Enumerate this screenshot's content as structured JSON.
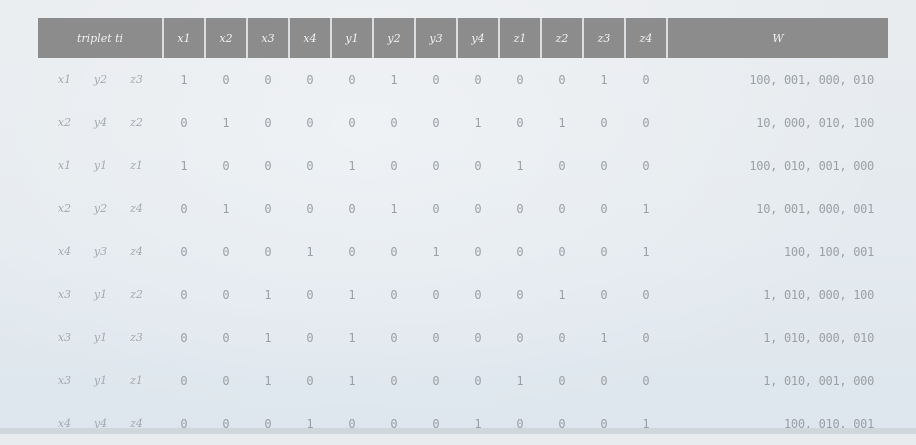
{
  "table": {
    "header": {
      "triplet": "triplet ti",
      "cols": [
        "x1",
        "x2",
        "x3",
        "x4",
        "y1",
        "y2",
        "y3",
        "y4",
        "z1",
        "z2",
        "z3",
        "z4"
      ],
      "w": "W"
    },
    "rows": [
      {
        "a": "x1",
        "b": "y2",
        "c": "z3",
        "bits": [
          "1",
          "0",
          "0",
          "0",
          "0",
          "1",
          "0",
          "0",
          "0",
          "0",
          "1",
          "0"
        ],
        "w": "100, 001, 000, 010"
      },
      {
        "a": "x2",
        "b": "y4",
        "c": "z2",
        "bits": [
          "0",
          "1",
          "0",
          "0",
          "0",
          "0",
          "0",
          "1",
          "0",
          "1",
          "0",
          "0"
        ],
        "w": "10, 000, 010, 100"
      },
      {
        "a": "x1",
        "b": "y1",
        "c": "z1",
        "bits": [
          "1",
          "0",
          "0",
          "0",
          "1",
          "0",
          "0",
          "0",
          "1",
          "0",
          "0",
          "0"
        ],
        "w": "100, 010, 001, 000"
      },
      {
        "a": "x2",
        "b": "y2",
        "c": "z4",
        "bits": [
          "0",
          "1",
          "0",
          "0",
          "0",
          "1",
          "0",
          "0",
          "0",
          "0",
          "0",
          "1"
        ],
        "w": "10, 001, 000, 001"
      },
      {
        "a": "x4",
        "b": "y3",
        "c": "z4",
        "bits": [
          "0",
          "0",
          "0",
          "1",
          "0",
          "0",
          "1",
          "0",
          "0",
          "0",
          "0",
          "1"
        ],
        "w": "100, 100, 001"
      },
      {
        "a": "x3",
        "b": "y1",
        "c": "z2",
        "bits": [
          "0",
          "0",
          "1",
          "0",
          "1",
          "0",
          "0",
          "0",
          "0",
          "1",
          "0",
          "0"
        ],
        "w": "1, 010, 000, 100"
      },
      {
        "a": "x3",
        "b": "y1",
        "c": "z3",
        "bits": [
          "0",
          "0",
          "1",
          "0",
          "1",
          "0",
          "0",
          "0",
          "0",
          "0",
          "1",
          "0"
        ],
        "w": "1, 010, 000, 010"
      },
      {
        "a": "x3",
        "b": "y1",
        "c": "z1",
        "bits": [
          "0",
          "0",
          "1",
          "0",
          "1",
          "0",
          "0",
          "0",
          "1",
          "0",
          "0",
          "0"
        ],
        "w": "1, 010, 001, 000"
      },
      {
        "a": "x4",
        "b": "y4",
        "c": "z4",
        "bits": [
          "0",
          "0",
          "0",
          "1",
          "0",
          "0",
          "0",
          "1",
          "0",
          "0",
          "0",
          "1"
        ],
        "w": "100, 010, 001"
      }
    ]
  }
}
